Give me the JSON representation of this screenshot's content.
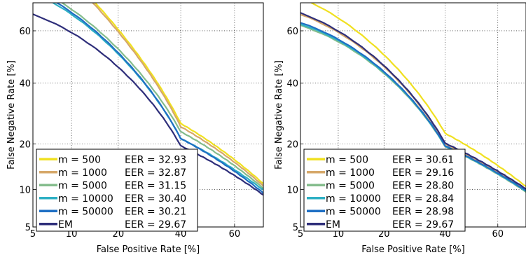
{
  "colors": {
    "m500": "#f0e020",
    "m1000": "#d6a86a",
    "m5000": "#84bc8c",
    "m10000": "#2eb0c4",
    "m50000": "#1f6fc4",
    "em": "#2e2e7a"
  },
  "chart_data": [
    {
      "type": "line",
      "xlabel": "False Positive Rate [%]",
      "ylabel": "False Negative Rate [%]",
      "xscale": "probit",
      "yscale": "probit",
      "xlim": [
        5,
        70
      ],
      "ylim": [
        5,
        70
      ],
      "xticks": [
        5,
        10,
        20,
        40,
        60
      ],
      "yticks": [
        5,
        10,
        20,
        40,
        60
      ],
      "xtick_labels": [
        "5",
        "10",
        "20",
        "40",
        "60"
      ],
      "ytick_labels": [
        "5",
        "10",
        "20",
        "40",
        "60"
      ],
      "grid": true,
      "legend_position": "bottom-left",
      "series": [
        {
          "name": "m = 500",
          "eer_label": "EER = 32.93",
          "color_key": "m500",
          "x": [
            14.5,
            40,
            70
          ],
          "y": [
            70,
            26,
            11
          ]
        },
        {
          "name": "m = 1000",
          "eer_label": "EER = 32.87",
          "color_key": "m1000",
          "x": [
            14,
            40,
            70
          ],
          "y": [
            70,
            25,
            10.6
          ]
        },
        {
          "name": "m = 5000",
          "eer_label": "EER = 31.15",
          "color_key": "m5000",
          "x": [
            8.5,
            40,
            70
          ],
          "y": [
            70,
            23.5,
            10.2
          ]
        },
        {
          "name": "m = 10000",
          "eer_label": "EER = 30.40",
          "color_key": "m10000",
          "x": [
            7.3,
            40,
            70
          ],
          "y": [
            70,
            21.5,
            9.9
          ]
        },
        {
          "name": "m = 50000",
          "eer_label": "EER = 30.21",
          "color_key": "m50000",
          "x": [
            7.8,
            40,
            70
          ],
          "y": [
            70,
            21.5,
            9.4
          ]
        },
        {
          "name": "EM",
          "eer_label": "EER = 29.67",
          "color_key": "em",
          "x": [
            5,
            40,
            70
          ],
          "y": [
            66,
            19.5,
            9.1
          ]
        }
      ]
    },
    {
      "type": "line",
      "xlabel": "False Positive Rate [%]",
      "ylabel": "False Negative Rate [%]",
      "xscale": "probit",
      "yscale": "probit",
      "xlim": [
        5,
        70
      ],
      "ylim": [
        5,
        70
      ],
      "xticks": [
        5,
        10,
        20,
        40,
        60
      ],
      "yticks": [
        5,
        10,
        20,
        40,
        60
      ],
      "xtick_labels": [
        "5",
        "10",
        "20",
        "40",
        "60"
      ],
      "ytick_labels": [
        "5",
        "10",
        "20",
        "40",
        "60"
      ],
      "grid": true,
      "legend_position": "bottom-left",
      "series": [
        {
          "name": "m = 500",
          "eer_label": "EER = 30.61",
          "color_key": "m500",
          "x": [
            6.2,
            40,
            70
          ],
          "y": [
            70,
            23,
            10.5
          ]
        },
        {
          "name": "m = 1000",
          "eer_label": "EER = 29.16",
          "color_key": "m1000",
          "x": [
            5,
            40,
            70
          ],
          "y": [
            66,
            20,
            10
          ]
        },
        {
          "name": "m = 5000",
          "eer_label": "EER = 28.80",
          "color_key": "m5000",
          "x": [
            5,
            40,
            70
          ],
          "y": [
            62,
            19.3,
            9.6
          ]
        },
        {
          "name": "m = 10000",
          "eer_label": "EER = 28.84",
          "color_key": "m10000",
          "x": [
            5,
            40,
            70
          ],
          "y": [
            62.5,
            19.4,
            9.7
          ]
        },
        {
          "name": "m = 50000",
          "eer_label": "EER = 28.98",
          "color_key": "m50000",
          "x": [
            5,
            40,
            70
          ],
          "y": [
            63,
            19.5,
            9.8
          ]
        },
        {
          "name": "EM",
          "eer_label": "EER = 29.67",
          "color_key": "em",
          "x": [
            5,
            40,
            70
          ],
          "y": [
            66.5,
            20.2,
            10.1
          ]
        }
      ]
    }
  ]
}
